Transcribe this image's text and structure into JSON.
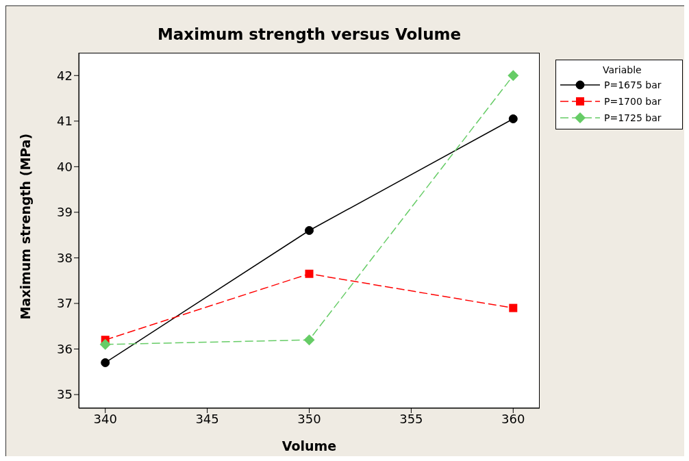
{
  "chart_data": {
    "type": "line",
    "title": "Maximum strength versus Volume",
    "xlabel": "Volume",
    "ylabel": "Maximum strength (MPa)",
    "legend_title": "Variable",
    "legend": "right",
    "x": [
      340,
      350,
      360
    ],
    "series": [
      {
        "name": "P=1675 bar",
        "color": "#000000",
        "values": [
          35.7,
          38.6,
          41.05
        ],
        "marker": "circle",
        "line_style": "solid"
      },
      {
        "name": "P=1700 bar",
        "color": "#ff0000",
        "values": [
          36.2,
          37.65,
          36.9
        ],
        "marker": "square",
        "line_style": "dashed"
      },
      {
        "name": "P=1725 bar",
        "color": "#66cc66",
        "values": [
          36.1,
          36.2,
          42.0
        ],
        "marker": "diamond",
        "line_style": "dashed"
      }
    ],
    "xlim": [
      338.7,
      361.3
    ],
    "xticks": [
      340,
      345,
      350,
      355,
      360
    ],
    "ylim": [
      34.7,
      42.5
    ],
    "yticks": [
      35,
      36,
      37,
      38,
      39,
      40,
      41,
      42
    ]
  }
}
